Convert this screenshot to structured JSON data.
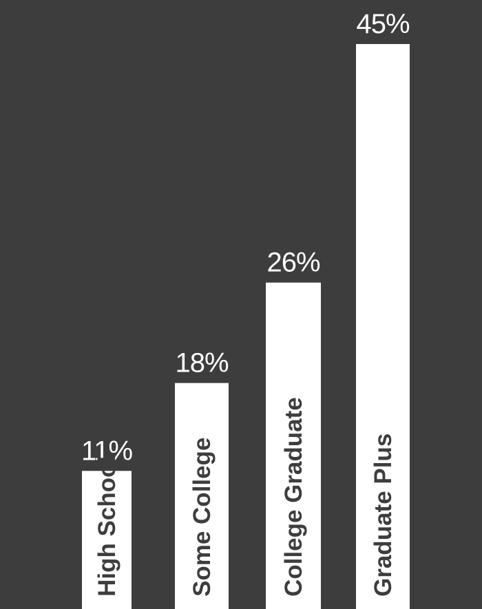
{
  "colors": {
    "background": "#3d3d3d",
    "bar": "#ffffff",
    "bar_label": "#3d3d3d",
    "value_label": "#ffffff"
  },
  "chart_data": {
    "type": "bar",
    "categories": [
      "High School",
      "Some College",
      "College Graduate",
      "Graduate Plus"
    ],
    "values": [
      11,
      18,
      26,
      45
    ],
    "value_labels": [
      "11%",
      "18%",
      "26%",
      "45%"
    ],
    "unit": "%",
    "ylim": [
      0,
      46
    ],
    "grid": false,
    "legend": "none",
    "category_label_placement": "inside-bar-rotated"
  }
}
